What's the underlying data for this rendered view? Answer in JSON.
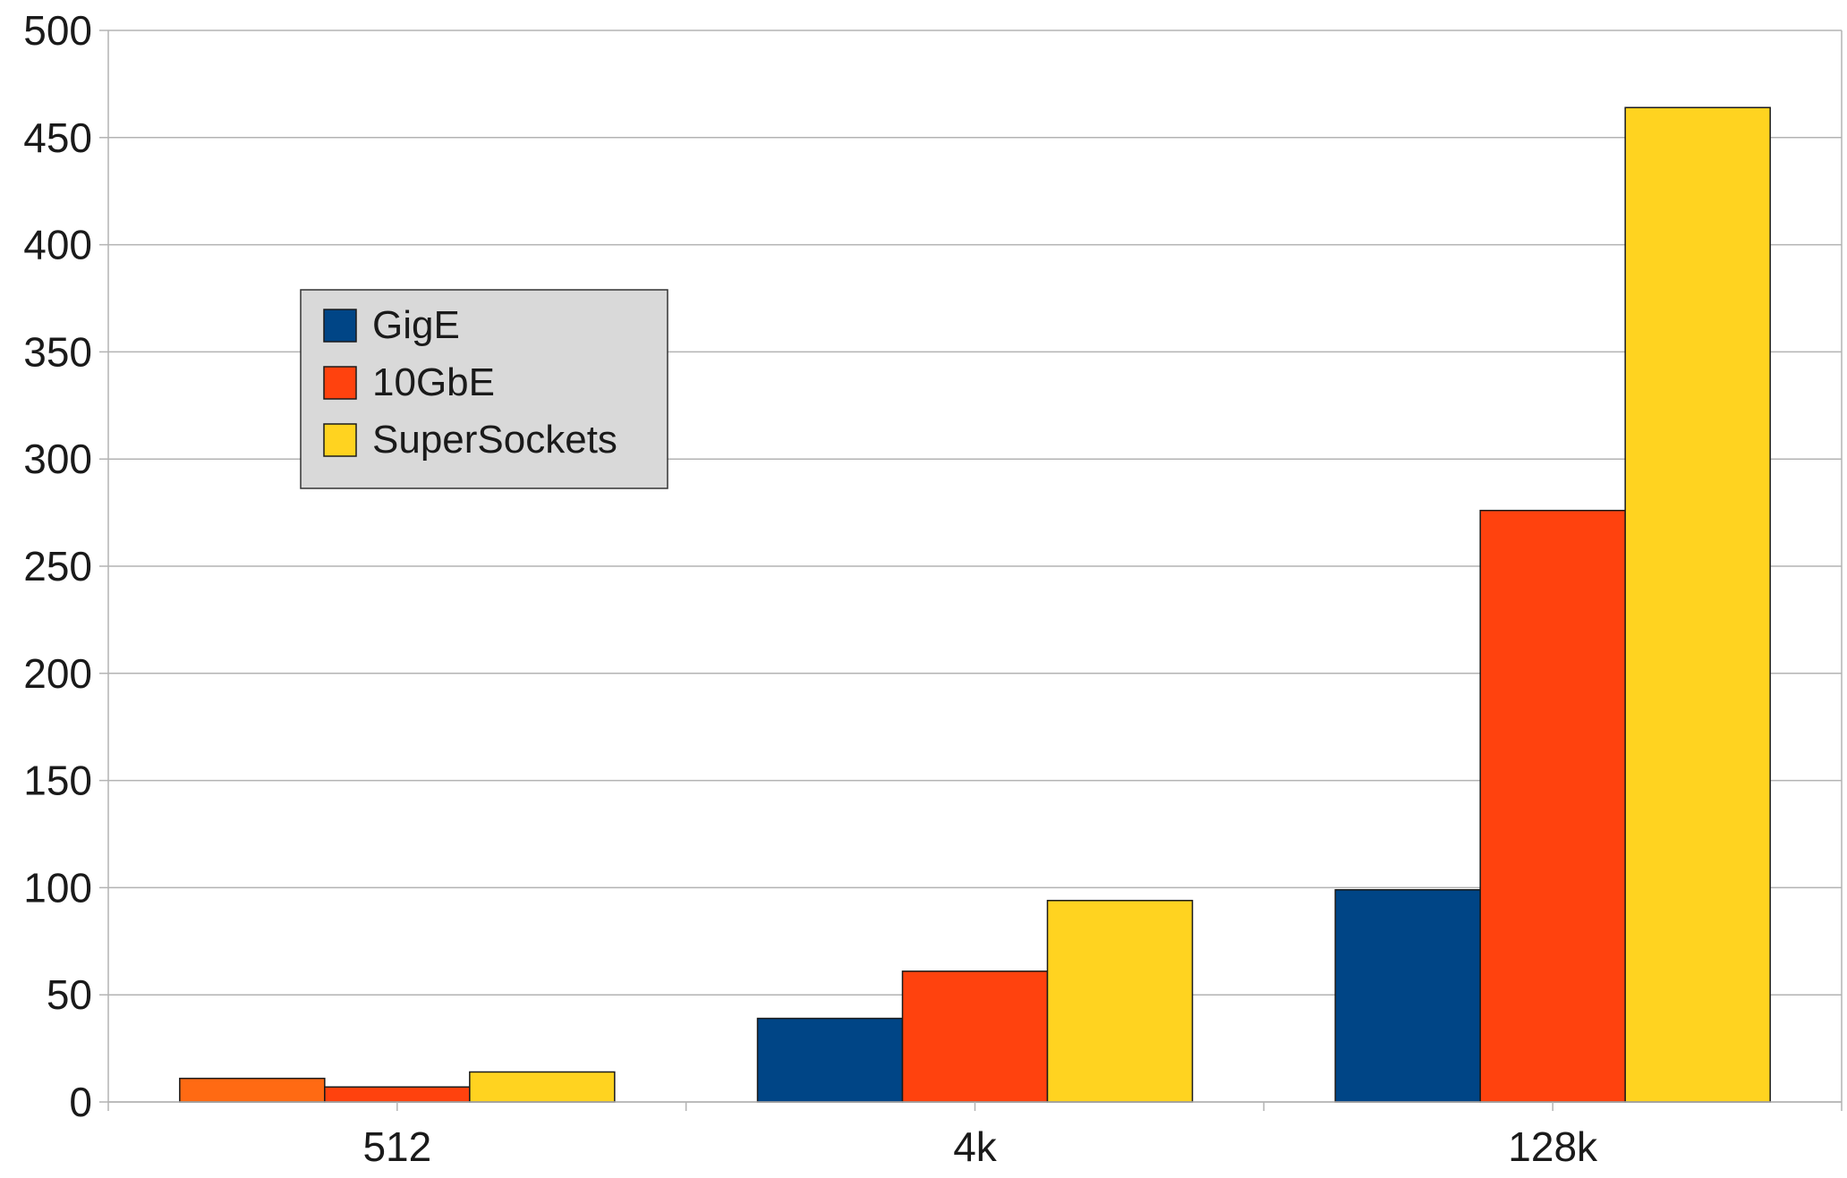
{
  "chart_data": {
    "type": "bar",
    "title": "",
    "xlabel": "",
    "ylabel": "",
    "categories": [
      "512",
      "4k",
      "128k"
    ],
    "ylim": [
      0,
      500
    ],
    "yticks": [
      0,
      50,
      100,
      150,
      200,
      250,
      300,
      350,
      400,
      450,
      500
    ],
    "grid": true,
    "legend_position": "upper-left",
    "series": [
      {
        "name": "GigE",
        "color": "#004586",
        "values": [
          11,
          39,
          99
        ]
      },
      {
        "name": "10GbE",
        "color": "#ff420e",
        "values": [
          7,
          61,
          276
        ]
      },
      {
        "name": "SuperSockets",
        "color": "#ffd320",
        "values": [
          14,
          94,
          464
        ]
      }
    ],
    "first_bar_color": "#ff6a13"
  }
}
